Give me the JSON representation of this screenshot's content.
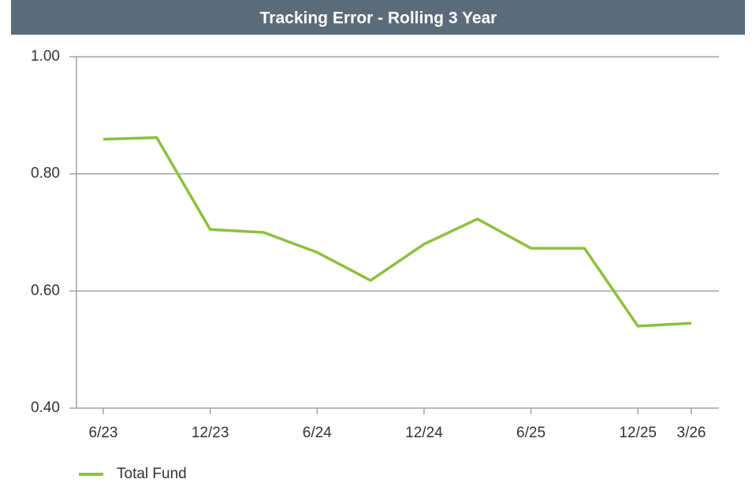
{
  "chart_data": {
    "type": "line",
    "title": "Tracking Error - Rolling 3 Year",
    "categories": [
      "6/23",
      null,
      "12/23",
      null,
      "6/24",
      null,
      "12/24",
      null,
      "6/25",
      null,
      "12/25",
      "3/26"
    ],
    "series": [
      {
        "name": "Total Fund",
        "color": "#8dc03f",
        "values": [
          0.859,
          0.862,
          0.705,
          0.7,
          0.666,
          0.618,
          0.68,
          0.723,
          0.673,
          0.673,
          0.54,
          0.545
        ]
      }
    ],
    "ylim": [
      0.4,
      1.0
    ],
    "yticks": [
      {
        "value": 0.4,
        "label": "0.40"
      },
      {
        "value": 0.6,
        "label": "0.60"
      },
      {
        "value": 0.8,
        "label": "0.80"
      },
      {
        "value": 1.0,
        "label": "1.00"
      }
    ],
    "grid": true,
    "legend": "bottom"
  }
}
